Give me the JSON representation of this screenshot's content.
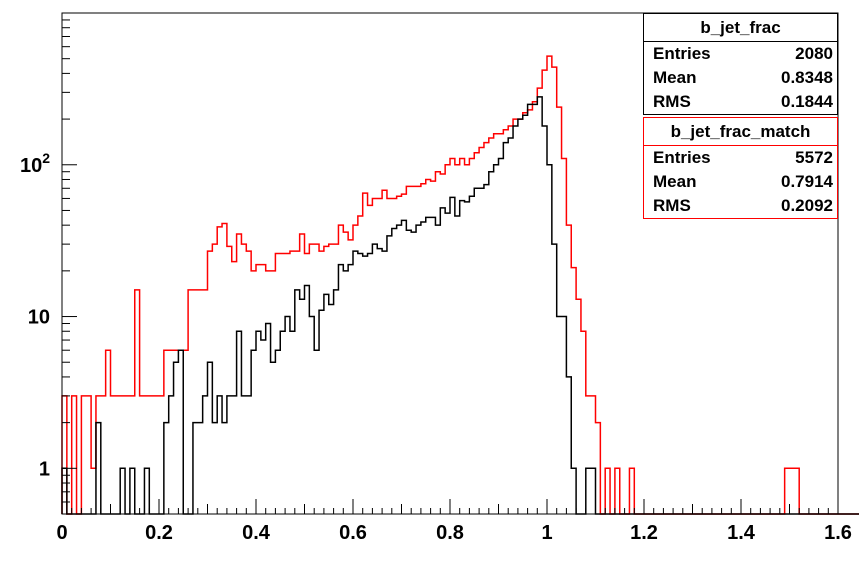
{
  "chart_data": {
    "type": "histogram",
    "title": "",
    "xlabel": "",
    "ylabel": "",
    "xlim": [
      0,
      1.6
    ],
    "ylim": [
      0.5,
      1000
    ],
    "y_scale": "log",
    "x_ticks": [
      "0",
      "0.2",
      "0.4",
      "0.6",
      "0.8",
      "1",
      "1.2",
      "1.4",
      "1.6"
    ],
    "y_ticks": [
      {
        "value": 1,
        "label": "1",
        "sup": ""
      },
      {
        "value": 10,
        "label": "10",
        "sup": ""
      },
      {
        "value": 100,
        "label": "10",
        "sup": "2"
      }
    ],
    "bin_width": 0.01,
    "series": [
      {
        "color": "#ff0000",
        "bins_start": 0.0,
        "values": [
          3,
          0,
          3,
          0,
          3,
          3,
          1,
          3,
          3,
          6,
          3,
          3,
          3,
          3,
          3,
          15,
          3,
          3,
          3,
          3,
          3,
          6,
          6,
          6,
          6,
          6,
          15,
          15,
          15,
          15,
          27,
          30,
          39,
          41,
          29,
          23,
          35,
          30,
          27,
          20,
          22,
          22,
          20,
          20,
          26,
          26,
          26,
          27,
          27,
          35,
          26,
          30,
          30,
          27,
          29,
          30,
          30,
          40,
          36,
          32,
          40,
          46,
          65,
          54,
          60,
          60,
          68,
          60,
          60,
          62,
          64,
          72,
          72,
          72,
          75,
          80,
          78,
          90,
          87,
          100,
          110,
          100,
          110,
          100,
          110,
          120,
          130,
          140,
          150,
          160,
          160,
          170,
          180,
          200,
          200,
          220,
          230,
          260,
          320,
          420,
          520,
          440,
          240,
          110,
          40,
          21,
          13,
          8,
          3,
          3,
          2,
          0.5,
          1,
          0.5,
          1,
          0.5,
          0.5,
          1,
          0.5,
          0.5,
          0.5,
          0.5,
          0.5,
          0.5,
          0.5,
          0.5,
          0.5,
          0.5,
          0.5,
          0.5,
          0.5,
          0.5,
          0.5,
          0.5,
          0.5,
          0.5,
          0.5,
          0.5,
          0.5,
          0.5,
          0.5,
          0.5,
          0.5,
          0.5,
          0.5,
          0.5,
          0.5,
          0.5,
          0.5,
          1,
          1,
          1,
          0.5,
          0.5,
          0.5,
          0.5,
          0.5,
          0.5,
          0.5,
          0.5,
          0.5,
          0.5,
          0.5,
          0.5,
          0.5,
          0.5,
          0.5,
          0.5,
          0.5,
          0.5,
          0.5,
          0.5,
          0.5
        ]
      },
      {
        "color": "#000000",
        "bins_start": 0.0,
        "values": [
          1,
          0.5,
          0.5,
          0.5,
          0.5,
          0.5,
          0.5,
          2,
          0.5,
          0.5,
          0.5,
          0.5,
          1,
          0.5,
          1,
          0.5,
          0.5,
          1,
          0.5,
          0.5,
          0.5,
          2,
          3,
          5,
          6,
          0.5,
          0.5,
          2,
          2,
          3,
          5,
          2,
          3,
          2,
          3,
          3,
          8,
          3,
          3,
          6,
          8,
          7,
          9,
          5,
          6,
          8,
          10,
          8,
          15,
          13,
          16,
          10,
          6,
          11,
          14,
          12,
          15,
          22,
          20,
          22,
          27,
          26,
          25,
          26,
          30,
          28,
          27,
          34,
          38,
          40,
          43,
          37,
          36,
          40,
          42,
          45,
          45,
          40,
          52,
          48,
          61,
          46,
          58,
          57,
          62,
          70,
          70,
          74,
          90,
          100,
          110,
          140,
          150,
          180,
          200,
          212,
          250,
          250,
          280,
          180,
          100,
          30,
          10,
          10,
          4,
          1,
          0.5,
          0.5,
          1,
          1,
          0.5,
          0.5,
          0.5,
          0.5,
          0.5,
          0.5,
          0.5,
          0.5,
          0.5,
          0.5,
          0.5,
          0.5,
          0.5,
          0.5,
          0.5,
          0.5,
          0.5,
          0.5,
          0.5,
          0.5,
          0.5,
          0.5,
          0.5,
          0.5,
          0.5,
          0.5,
          0.5,
          0.5,
          0.5,
          0.5,
          0.5,
          0.5,
          0.5,
          0.5,
          0.5,
          0.5,
          0.5,
          0.5,
          0.5,
          0.5,
          0.5,
          0.5,
          0.5,
          0.5,
          0.5,
          0.5,
          0.5,
          0.5,
          0.5,
          0.5,
          0.5,
          0.5,
          0.5,
          0.5,
          0.5,
          0.5,
          0.5,
          0.5,
          0.5,
          0.5,
          0.5,
          0.5
        ]
      }
    ],
    "stats_boxes": [
      {
        "name": "b_jet_frac",
        "color": "#000000",
        "entries": "2080",
        "mean": "0.8348",
        "rms": "0.1844"
      },
      {
        "name": "b_jet_frac_match",
        "color": "#ff0000",
        "entries": "5572",
        "mean": "0.7914",
        "rms": "0.2092"
      }
    ]
  },
  "stats_labels": {
    "entries": "Entries",
    "mean": "Mean",
    "rms": "RMS"
  }
}
